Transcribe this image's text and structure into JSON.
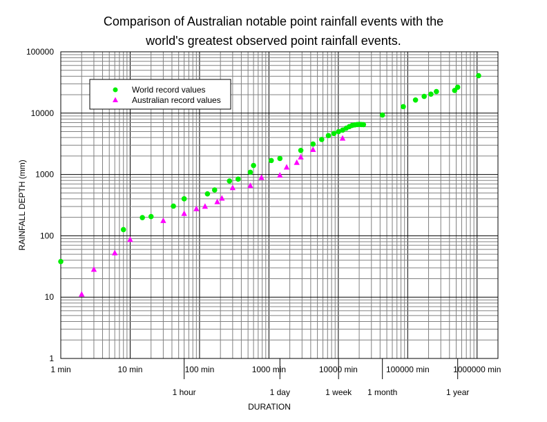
{
  "chart_data": {
    "type": "scatter",
    "title_lines": [
      "Comparison of Australian notable point rainfall events with the",
      "world's greatest observed point rainfall events."
    ],
    "xlabel": "DURATION",
    "ylabel": "RAINFALL DEPTH (mm)",
    "x_scale": "log",
    "y_scale": "log",
    "xlim": [
      1,
      2000000
    ],
    "ylim": [
      1,
      100000
    ],
    "grid": true,
    "legend_position": "top-left",
    "x_tick_labels": [
      {
        "value": 1,
        "label": "1 min"
      },
      {
        "value": 10,
        "label": "10 min"
      },
      {
        "value": 100,
        "label": "100 min"
      },
      {
        "value": 1000,
        "label": "1000 min"
      },
      {
        "value": 10000,
        "label": "10000 min"
      },
      {
        "value": 100000,
        "label": "100000 min"
      },
      {
        "value": 1000000,
        "label": "1000000 min"
      }
    ],
    "x_secondary_labels": [
      {
        "value": 60,
        "label": "1 hour"
      },
      {
        "value": 1440,
        "label": "1 day"
      },
      {
        "value": 10080,
        "label": "1 week"
      },
      {
        "value": 43200,
        "label": "1 month"
      },
      {
        "value": 525600,
        "label": "1 year"
      }
    ],
    "y_tick_labels": [
      {
        "value": 1,
        "label": "1"
      },
      {
        "value": 10,
        "label": "10"
      },
      {
        "value": 100,
        "label": "100"
      },
      {
        "value": 1000,
        "label": "1000"
      },
      {
        "value": 10000,
        "label": "10000"
      },
      {
        "value": 100000,
        "label": "100000"
      }
    ],
    "series": [
      {
        "name": "World record values",
        "marker": "circle",
        "color": "#00ee00",
        "points": [
          {
            "x": 1,
            "y": 38
          },
          {
            "x": 8,
            "y": 126
          },
          {
            "x": 15,
            "y": 198
          },
          {
            "x": 20,
            "y": 206
          },
          {
            "x": 42,
            "y": 305
          },
          {
            "x": 60,
            "y": 401
          },
          {
            "x": 130,
            "y": 483
          },
          {
            "x": 165,
            "y": 559
          },
          {
            "x": 270,
            "y": 782
          },
          {
            "x": 360,
            "y": 840
          },
          {
            "x": 540,
            "y": 1087
          },
          {
            "x": 600,
            "y": 1400
          },
          {
            "x": 1080,
            "y": 1689
          },
          {
            "x": 1440,
            "y": 1825
          },
          {
            "x": 2880,
            "y": 2467
          },
          {
            "x": 4320,
            "y": 3130
          },
          {
            "x": 5760,
            "y": 3721
          },
          {
            "x": 7200,
            "y": 4301
          },
          {
            "x": 8640,
            "y": 4653
          },
          {
            "x": 10080,
            "y": 5003
          },
          {
            "x": 11520,
            "y": 5286
          },
          {
            "x": 12960,
            "y": 5678
          },
          {
            "x": 14400,
            "y": 6028
          },
          {
            "x": 15840,
            "y": 6309
          },
          {
            "x": 17280,
            "y": 6433
          },
          {
            "x": 18720,
            "y": 6512
          },
          {
            "x": 20160,
            "y": 6571
          },
          {
            "x": 21600,
            "y": 6512
          },
          {
            "x": 23040,
            "y": 6500
          },
          {
            "x": 43200,
            "y": 9300
          },
          {
            "x": 86400,
            "y": 12767
          },
          {
            "x": 129600,
            "y": 16369
          },
          {
            "x": 172800,
            "y": 18738
          },
          {
            "x": 216000,
            "y": 20412
          },
          {
            "x": 259200,
            "y": 22454
          },
          {
            "x": 475200,
            "y": 23431
          },
          {
            "x": 525600,
            "y": 26461
          },
          {
            "x": 1051200,
            "y": 40768
          }
        ]
      },
      {
        "name": "Australian record values",
        "marker": "triangle",
        "color": "#ff00ff",
        "points": [
          {
            "x": 2,
            "y": 11
          },
          {
            "x": 3,
            "y": 28
          },
          {
            "x": 6,
            "y": 52
          },
          {
            "x": 10,
            "y": 86
          },
          {
            "x": 30,
            "y": 175
          },
          {
            "x": 60,
            "y": 228
          },
          {
            "x": 90,
            "y": 272
          },
          {
            "x": 120,
            "y": 298
          },
          {
            "x": 180,
            "y": 354
          },
          {
            "x": 210,
            "y": 405
          },
          {
            "x": 300,
            "y": 600
          },
          {
            "x": 540,
            "y": 650
          },
          {
            "x": 780,
            "y": 880
          },
          {
            "x": 1440,
            "y": 960
          },
          {
            "x": 1800,
            "y": 1300
          },
          {
            "x": 2520,
            "y": 1550
          },
          {
            "x": 2880,
            "y": 1900
          },
          {
            "x": 4320,
            "y": 2520
          },
          {
            "x": 11520,
            "y": 3850
          }
        ]
      }
    ]
  }
}
